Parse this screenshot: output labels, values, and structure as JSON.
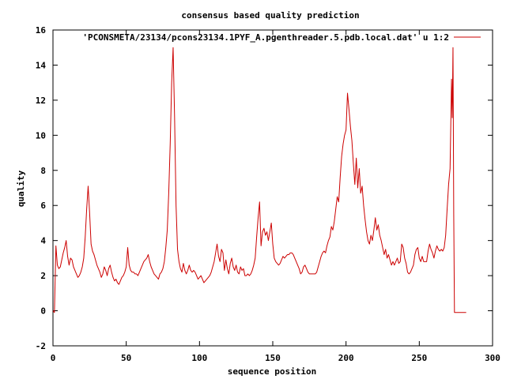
{
  "chart_data": {
    "type": "line",
    "title": "consensus based quality prediction",
    "xlabel": "sequence position",
    "ylabel": "quality",
    "xlim": [
      0,
      300
    ],
    "ylim": [
      -2,
      16
    ],
    "xticks": [
      0,
      50,
      100,
      150,
      200,
      250,
      300
    ],
    "yticks": [
      -2,
      0,
      2,
      4,
      6,
      8,
      10,
      12,
      14,
      16
    ],
    "grid": false,
    "legend_position": "top-right",
    "series": [
      {
        "name": "'PCONSMETA/23134/pcons23134.1PYF_A.pgenthreader.5.pdb.local.dat' u 1:2",
        "color": "#cc0000",
        "points": [
          [
            0,
            0.0
          ],
          [
            1,
            -0.1
          ],
          [
            2,
            3.7
          ],
          [
            3,
            2.6
          ],
          [
            4,
            2.4
          ],
          [
            5,
            2.5
          ],
          [
            6,
            2.9
          ],
          [
            7,
            3.3
          ],
          [
            8,
            3.6
          ],
          [
            9,
            4.0
          ],
          [
            10,
            3.1
          ],
          [
            11,
            2.6
          ],
          [
            12,
            3.0
          ],
          [
            13,
            2.9
          ],
          [
            14,
            2.5
          ],
          [
            15,
            2.3
          ],
          [
            16,
            2.1
          ],
          [
            17,
            1.9
          ],
          [
            18,
            2.0
          ],
          [
            19,
            2.2
          ],
          [
            20,
            2.5
          ],
          [
            21,
            3.0
          ],
          [
            22,
            4.2
          ],
          [
            23,
            5.8
          ],
          [
            24,
            7.1
          ],
          [
            25,
            5.6
          ],
          [
            26,
            3.8
          ],
          [
            27,
            3.4
          ],
          [
            28,
            3.2
          ],
          [
            29,
            2.9
          ],
          [
            30,
            2.6
          ],
          [
            31,
            2.4
          ],
          [
            32,
            2.2
          ],
          [
            33,
            1.9
          ],
          [
            34,
            2.1
          ],
          [
            35,
            2.5
          ],
          [
            36,
            2.3
          ],
          [
            37,
            2.0
          ],
          [
            38,
            2.4
          ],
          [
            39,
            2.6
          ],
          [
            40,
            2.2
          ],
          [
            41,
            1.9
          ],
          [
            42,
            1.7
          ],
          [
            43,
            1.8
          ],
          [
            44,
            1.6
          ],
          [
            45,
            1.5
          ],
          [
            46,
            1.7
          ],
          [
            47,
            1.9
          ],
          [
            48,
            2.0
          ],
          [
            49,
            2.2
          ],
          [
            50,
            2.5
          ],
          [
            51,
            3.6
          ],
          [
            52,
            2.6
          ],
          [
            53,
            2.3
          ],
          [
            54,
            2.2
          ],
          [
            55,
            2.2
          ],
          [
            56,
            2.1
          ],
          [
            57,
            2.1
          ],
          [
            58,
            2.0
          ],
          [
            59,
            2.2
          ],
          [
            60,
            2.4
          ],
          [
            61,
            2.6
          ],
          [
            62,
            2.8
          ],
          [
            63,
            2.9
          ],
          [
            64,
            3.0
          ],
          [
            65,
            3.2
          ],
          [
            66,
            2.8
          ],
          [
            67,
            2.5
          ],
          [
            68,
            2.3
          ],
          [
            69,
            2.1
          ],
          [
            70,
            2.0
          ],
          [
            71,
            1.9
          ],
          [
            72,
            1.8
          ],
          [
            73,
            2.1
          ],
          [
            74,
            2.2
          ],
          [
            75,
            2.4
          ],
          [
            76,
            2.8
          ],
          [
            77,
            3.6
          ],
          [
            78,
            4.6
          ],
          [
            79,
            6.7
          ],
          [
            80,
            9.5
          ],
          [
            81,
            13.0
          ],
          [
            82,
            15.0
          ],
          [
            83,
            11.0
          ],
          [
            84,
            6.0
          ],
          [
            85,
            3.5
          ],
          [
            86,
            2.8
          ],
          [
            87,
            2.4
          ],
          [
            88,
            2.2
          ],
          [
            89,
            2.7
          ],
          [
            90,
            2.3
          ],
          [
            91,
            2.1
          ],
          [
            92,
            2.3
          ],
          [
            93,
            2.6
          ],
          [
            94,
            2.3
          ],
          [
            95,
            2.2
          ],
          [
            96,
            2.3
          ],
          [
            97,
            2.2
          ],
          [
            98,
            2.0
          ],
          [
            99,
            1.8
          ],
          [
            100,
            1.9
          ],
          [
            101,
            2.0
          ],
          [
            102,
            1.8
          ],
          [
            103,
            1.6
          ],
          [
            104,
            1.7
          ],
          [
            105,
            1.8
          ],
          [
            106,
            1.9
          ],
          [
            107,
            2.0
          ],
          [
            108,
            2.2
          ],
          [
            109,
            2.5
          ],
          [
            110,
            2.8
          ],
          [
            111,
            3.3
          ],
          [
            112,
            3.8
          ],
          [
            113,
            3.1
          ],
          [
            114,
            2.8
          ],
          [
            115,
            3.5
          ],
          [
            116,
            3.3
          ],
          [
            117,
            2.3
          ],
          [
            118,
            2.9
          ],
          [
            119,
            2.4
          ],
          [
            120,
            2.1
          ],
          [
            121,
            2.7
          ],
          [
            122,
            3.0
          ],
          [
            123,
            2.5
          ],
          [
            124,
            2.3
          ],
          [
            125,
            2.6
          ],
          [
            126,
            2.2
          ],
          [
            127,
            2.1
          ],
          [
            128,
            2.5
          ],
          [
            129,
            2.3
          ],
          [
            130,
            2.4
          ],
          [
            131,
            2.0
          ],
          [
            132,
            2.0
          ],
          [
            133,
            2.1
          ],
          [
            134,
            2.0
          ],
          [
            135,
            2.1
          ],
          [
            136,
            2.3
          ],
          [
            137,
            2.6
          ],
          [
            138,
            3.0
          ],
          [
            139,
            4.2
          ],
          [
            140,
            5.3
          ],
          [
            141,
            6.2
          ],
          [
            142,
            3.7
          ],
          [
            143,
            4.5
          ],
          [
            144,
            4.7
          ],
          [
            145,
            4.3
          ],
          [
            146,
            4.5
          ],
          [
            147,
            4.0
          ],
          [
            148,
            4.5
          ],
          [
            149,
            5.0
          ],
          [
            150,
            3.8
          ],
          [
            151,
            3.0
          ],
          [
            152,
            2.8
          ],
          [
            153,
            2.7
          ],
          [
            154,
            2.6
          ],
          [
            155,
            2.7
          ],
          [
            156,
            2.9
          ],
          [
            157,
            3.1
          ],
          [
            158,
            3.0
          ],
          [
            159,
            3.1
          ],
          [
            160,
            3.2
          ],
          [
            161,
            3.2
          ],
          [
            162,
            3.3
          ],
          [
            163,
            3.3
          ],
          [
            164,
            3.2
          ],
          [
            165,
            3.0
          ],
          [
            166,
            2.8
          ],
          [
            167,
            2.6
          ],
          [
            168,
            2.4
          ],
          [
            169,
            2.1
          ],
          [
            170,
            2.2
          ],
          [
            171,
            2.5
          ],
          [
            172,
            2.6
          ],
          [
            173,
            2.4
          ],
          [
            174,
            2.2
          ],
          [
            175,
            2.1
          ],
          [
            176,
            2.1
          ],
          [
            177,
            2.1
          ],
          [
            178,
            2.1
          ],
          [
            179,
            2.1
          ],
          [
            180,
            2.2
          ],
          [
            181,
            2.5
          ],
          [
            182,
            2.8
          ],
          [
            183,
            3.1
          ],
          [
            184,
            3.3
          ],
          [
            185,
            3.4
          ],
          [
            186,
            3.3
          ],
          [
            187,
            3.7
          ],
          [
            188,
            4.0
          ],
          [
            189,
            4.2
          ],
          [
            190,
            4.8
          ],
          [
            191,
            4.6
          ],
          [
            192,
            5.1
          ],
          [
            193,
            5.8
          ],
          [
            194,
            6.5
          ],
          [
            195,
            6.2
          ],
          [
            196,
            7.6
          ],
          [
            197,
            8.8
          ],
          [
            198,
            9.5
          ],
          [
            199,
            10.0
          ],
          [
            200,
            10.3
          ],
          [
            201,
            12.4
          ],
          [
            202,
            11.5
          ],
          [
            203,
            10.5
          ],
          [
            204,
            9.7
          ],
          [
            205,
            8.4
          ],
          [
            206,
            7.2
          ],
          [
            207,
            8.7
          ],
          [
            208,
            7.0
          ],
          [
            209,
            8.1
          ],
          [
            210,
            6.7
          ],
          [
            211,
            7.1
          ],
          [
            212,
            6.0
          ],
          [
            213,
            5.2
          ],
          [
            214,
            4.5
          ],
          [
            215,
            4.0
          ],
          [
            216,
            3.8
          ],
          [
            217,
            4.3
          ],
          [
            218,
            4.0
          ],
          [
            219,
            4.6
          ],
          [
            220,
            5.3
          ],
          [
            221,
            4.6
          ],
          [
            222,
            4.9
          ],
          [
            223,
            4.3
          ],
          [
            224,
            4.0
          ],
          [
            225,
            3.6
          ],
          [
            226,
            3.2
          ],
          [
            227,
            3.5
          ],
          [
            228,
            3.0
          ],
          [
            229,
            3.2
          ],
          [
            230,
            2.9
          ],
          [
            231,
            2.6
          ],
          [
            232,
            2.8
          ],
          [
            233,
            2.6
          ],
          [
            234,
            2.8
          ],
          [
            235,
            3.0
          ],
          [
            236,
            2.7
          ],
          [
            237,
            2.8
          ],
          [
            238,
            3.8
          ],
          [
            239,
            3.6
          ],
          [
            240,
            3.0
          ],
          [
            241,
            2.7
          ],
          [
            242,
            2.2
          ],
          [
            243,
            2.1
          ],
          [
            244,
            2.2
          ],
          [
            245,
            2.4
          ],
          [
            246,
            2.6
          ],
          [
            247,
            3.2
          ],
          [
            248,
            3.5
          ],
          [
            249,
            3.6
          ],
          [
            250,
            3.0
          ],
          [
            251,
            2.8
          ],
          [
            252,
            3.1
          ],
          [
            253,
            2.8
          ],
          [
            254,
            2.8
          ],
          [
            255,
            2.8
          ],
          [
            256,
            3.4
          ],
          [
            257,
            3.8
          ],
          [
            258,
            3.5
          ],
          [
            259,
            3.3
          ],
          [
            260,
            3.0
          ],
          [
            261,
            3.4
          ],
          [
            262,
            3.7
          ],
          [
            263,
            3.5
          ],
          [
            264,
            3.4
          ],
          [
            265,
            3.5
          ],
          [
            266,
            3.4
          ],
          [
            267,
            3.6
          ],
          [
            268,
            4.3
          ],
          [
            269,
            5.8
          ],
          [
            270,
            7.2
          ],
          [
            271,
            8.1
          ],
          [
            272,
            13.2
          ],
          [
            272.5,
            11.0
          ],
          [
            273,
            15.0
          ],
          [
            273.5,
            5.5
          ],
          [
            274,
            -0.1
          ],
          [
            276,
            -0.1
          ],
          [
            278,
            -0.1
          ],
          [
            280,
            -0.1
          ],
          [
            282,
            -0.1
          ]
        ]
      }
    ]
  }
}
